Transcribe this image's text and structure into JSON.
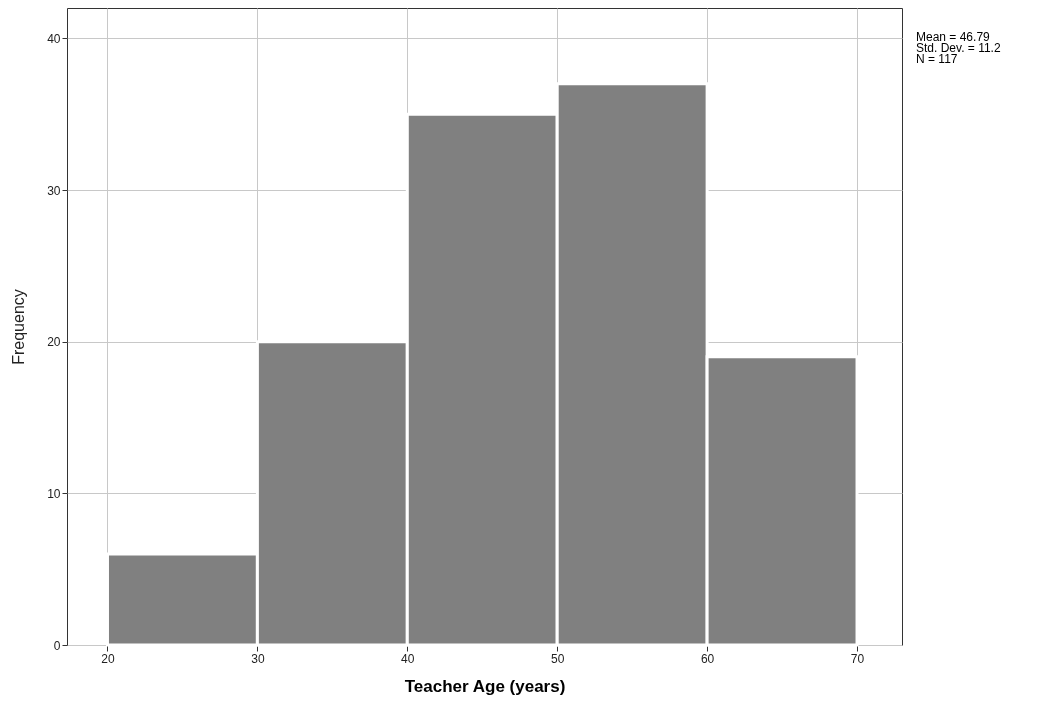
{
  "chart_data": {
    "type": "histogram",
    "xlabel": "Teacher Age (years)",
    "ylabel": "Frequency",
    "bins": [
      20,
      30,
      40,
      50,
      60,
      70
    ],
    "values": [
      6,
      20,
      35,
      37,
      19
    ],
    "color": "#808080",
    "xlim": [
      17.3,
      73
    ],
    "xticks": [
      20,
      30,
      40,
      50,
      60,
      70
    ],
    "ylim": [
      0,
      42
    ],
    "yticks": [
      0,
      10,
      20,
      30,
      40
    ],
    "grid": true,
    "annotations": [
      "Mean = 46.79",
      "Std. Dev. = 11.2",
      "N = 117"
    ]
  }
}
